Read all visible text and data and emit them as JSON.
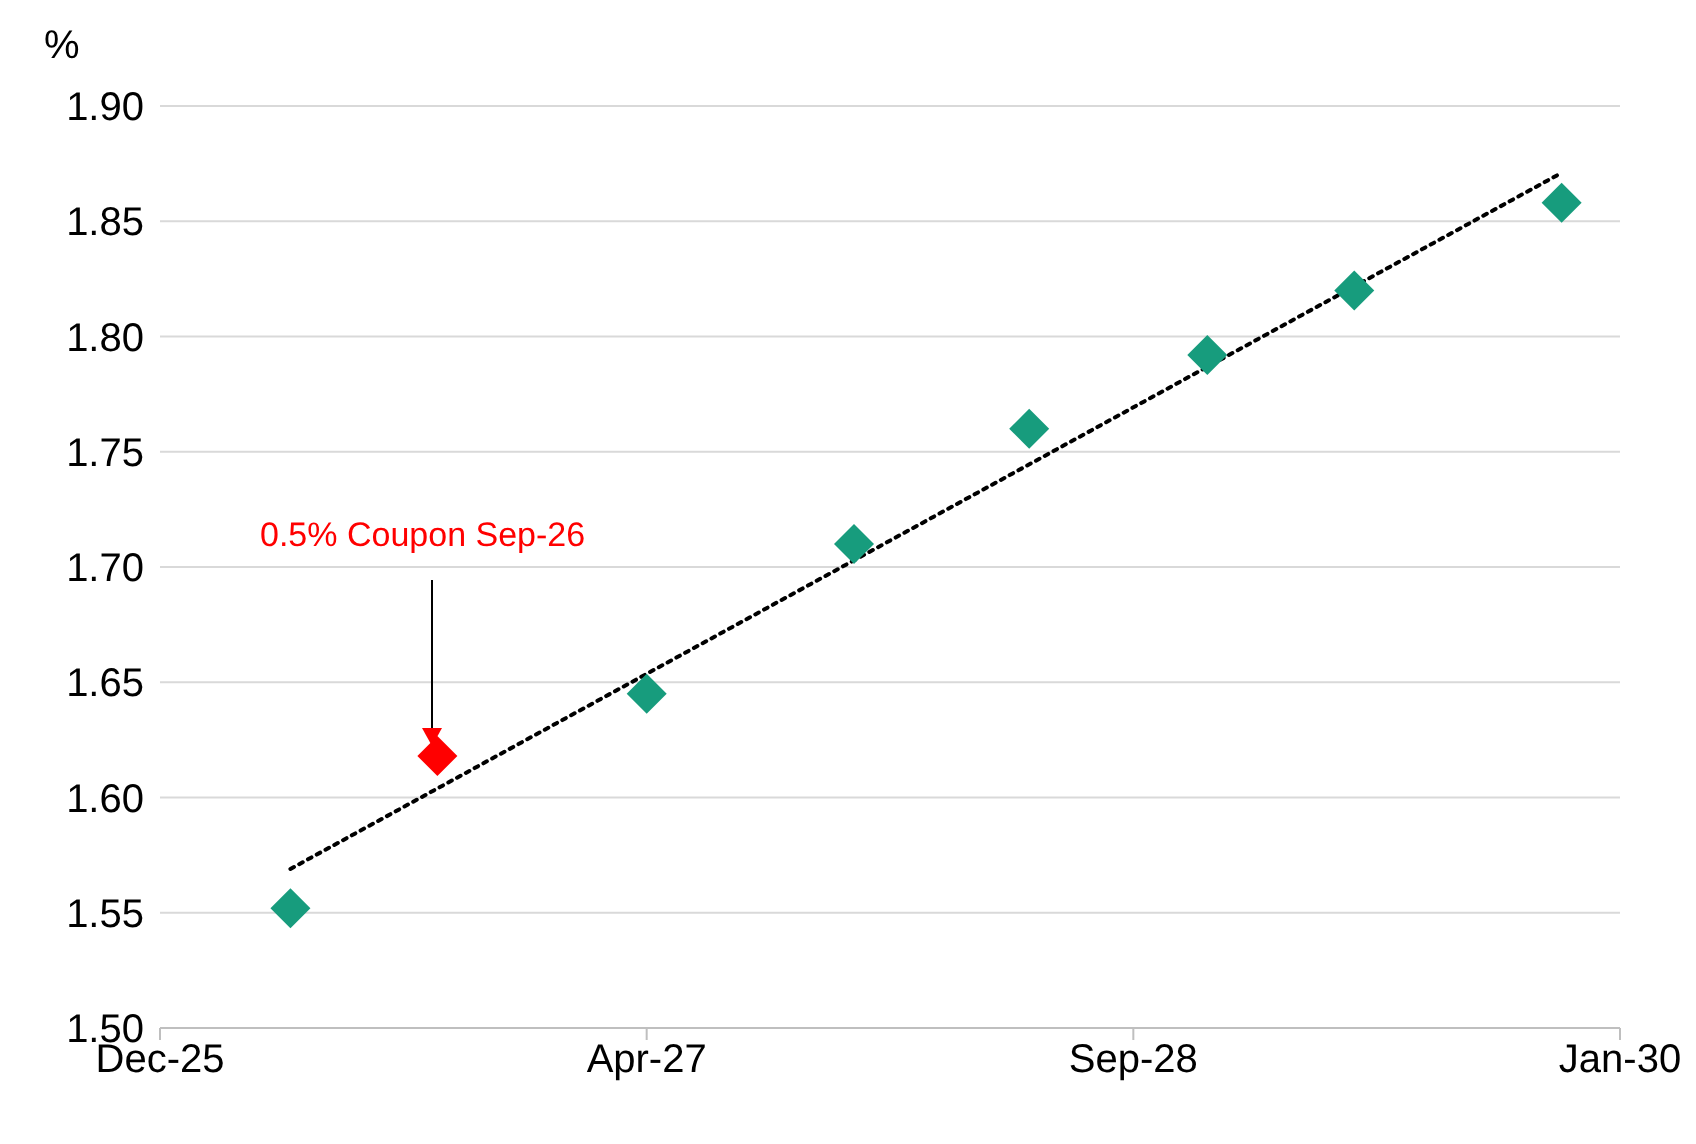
{
  "chart_data": {
    "type": "scatter",
    "ylabel": "%",
    "x": [
      "2026-04-23",
      "2026-09-21",
      "2027-04-24",
      "2027-11-23",
      "2028-05-21",
      "2028-11-20",
      "2029-04-20",
      "2029-11-19"
    ],
    "series": [
      {
        "colors": [
          "#179c7d",
          "#ff0000",
          "#179c7d",
          "#179c7d",
          "#179c7d",
          "#179c7d",
          "#179c7d",
          "#179c7d"
        ],
        "values": [
          1.552,
          1.618,
          1.645,
          1.71,
          1.76,
          1.792,
          1.82,
          1.858
        ],
        "marker": "diamond"
      },
      {
        "type": "line",
        "color": "#000000",
        "line_style": "dotted",
        "marker": "none",
        "x": [
          "2026-04-23",
          "2029-11-19"
        ],
        "values": [
          1.569,
          1.871
        ]
      }
    ],
    "annotations": [
      "0.5% Coupon Sep-26"
    ],
    "xlim": [
      "2025-12-10",
      "2030-01-18"
    ],
    "xticks": [
      {
        "value": "2025-12-10",
        "label": "Dec-25"
      },
      {
        "value": "2027-04-24",
        "label": "Apr-27"
      },
      {
        "value": "2028-09-05",
        "label": "Sep-28"
      },
      {
        "value": "2030-01-18",
        "label": "Jan-30"
      }
    ],
    "ylim": [
      1.5,
      1.9
    ],
    "yticks": [
      {
        "value": 1.5,
        "label": "1.50"
      },
      {
        "value": 1.55,
        "label": "1.55"
      },
      {
        "value": 1.6,
        "label": "1.60"
      },
      {
        "value": 1.65,
        "label": "1.65"
      },
      {
        "value": 1.7,
        "label": "1.70"
      },
      {
        "value": 1.75,
        "label": "1.75"
      },
      {
        "value": 1.8,
        "label": "1.80"
      },
      {
        "value": 1.85,
        "label": "1.85"
      },
      {
        "value": 1.9,
        "label": "1.90"
      }
    ],
    "grid": "y"
  }
}
